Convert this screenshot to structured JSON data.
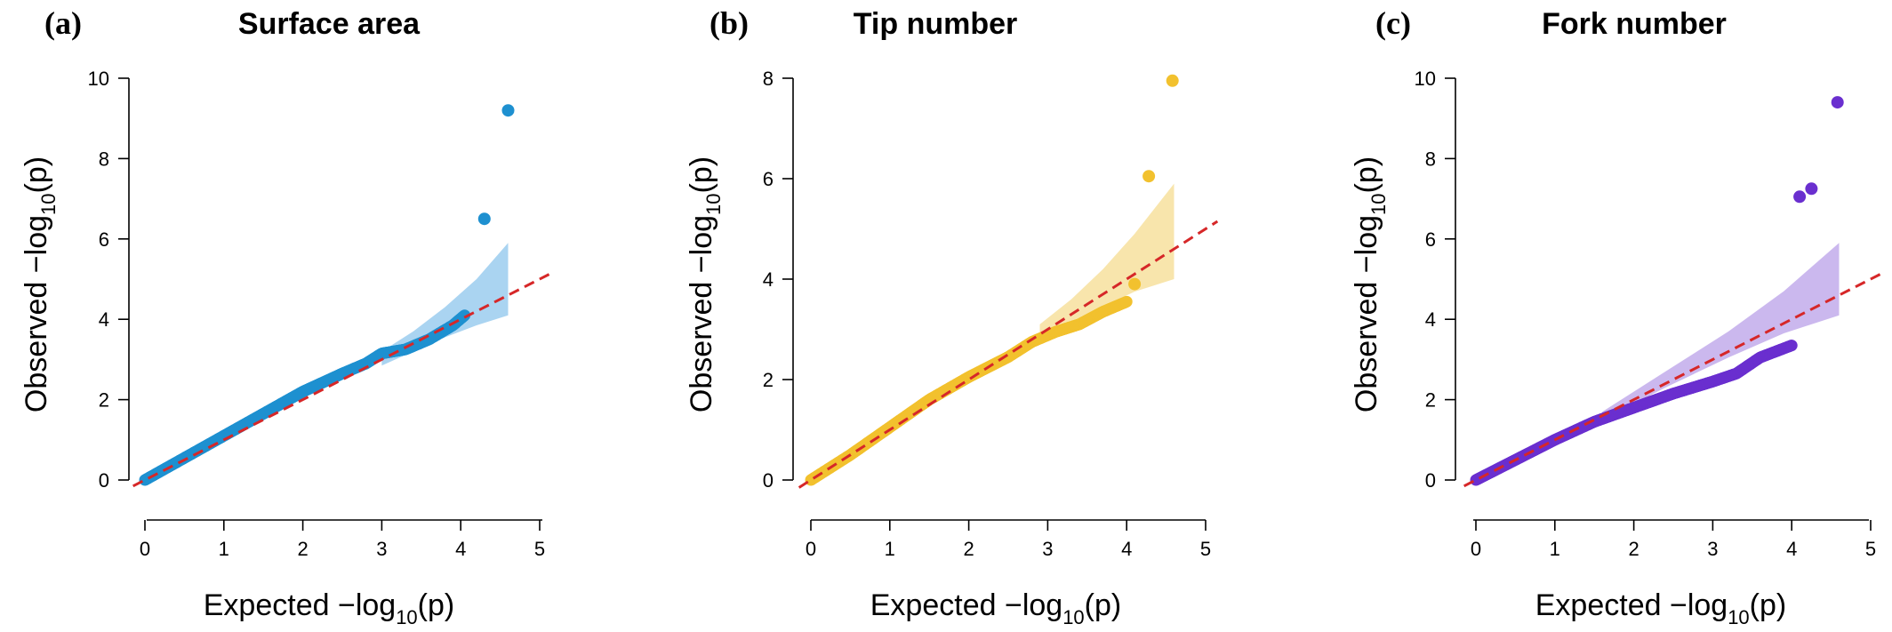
{
  "colors": {
    "reference_line": "#d62728",
    "axes": "#000000"
  },
  "chart_data": [
    {
      "type": "scatter",
      "panel_label": "(a)",
      "title": "Surface area",
      "xlabel": {
        "prefix": "Expected  −log",
        "sub": "10",
        "suffix": "(p)"
      },
      "ylabel": {
        "prefix": "Observed  −log",
        "sub": "10",
        "suffix": "(p)"
      },
      "xlim": [
        0,
        5
      ],
      "ylim": [
        0,
        10
      ],
      "xticks": [
        "0",
        "1",
        "2",
        "3",
        "4",
        "5"
      ],
      "yticks": [
        "0",
        "2",
        "4",
        "6",
        "8",
        "10"
      ],
      "grid": false,
      "color": "#1e90d0",
      "band_color": "#8ec5ec",
      "reference_line": {
        "slope": 1,
        "intercept": 0
      },
      "band": {
        "x": [
          3.0,
          3.4,
          3.8,
          4.2,
          4.6
        ],
        "upper": [
          3.2,
          3.7,
          4.3,
          5.0,
          5.9
        ],
        "lower": [
          2.85,
          3.2,
          3.55,
          3.85,
          4.1
        ]
      },
      "trend": {
        "x": [
          0,
          0.5,
          1.0,
          1.5,
          2.0,
          2.5,
          2.8,
          3.0,
          3.3,
          3.6,
          3.9,
          4.05
        ],
        "y": [
          0,
          0.55,
          1.1,
          1.65,
          2.2,
          2.65,
          2.9,
          3.15,
          3.25,
          3.5,
          3.85,
          4.1
        ]
      },
      "outliers": [
        {
          "x": 4.3,
          "y": 6.5
        },
        {
          "x": 4.6,
          "y": 9.2
        }
      ]
    },
    {
      "type": "scatter",
      "panel_label": "(b)",
      "title": "Tip number",
      "xlabel": {
        "prefix": "Expected  −log",
        "sub": "10",
        "suffix": "(p)"
      },
      "ylabel": {
        "prefix": "Observed  −log",
        "sub": "10",
        "suffix": "(p)"
      },
      "xlim": [
        0,
        5
      ],
      "ylim": [
        0,
        8
      ],
      "xticks": [
        "0",
        "1",
        "2",
        "3",
        "4",
        "5"
      ],
      "yticks": [
        "0",
        "2",
        "4",
        "6",
        "8"
      ],
      "grid": false,
      "color": "#f2c12e",
      "band_color": "#f6dc90",
      "reference_line": {
        "slope": 1,
        "intercept": 0
      },
      "band": {
        "x": [
          2.9,
          3.3,
          3.7,
          4.1,
          4.6
        ],
        "upper": [
          3.1,
          3.6,
          4.2,
          4.9,
          5.9
        ],
        "lower": [
          2.8,
          3.15,
          3.45,
          3.75,
          4.0
        ]
      },
      "trend": {
        "x": [
          0,
          0.5,
          1.0,
          1.5,
          2.0,
          2.5,
          2.8,
          3.1,
          3.4,
          3.7,
          4.0
        ],
        "y": [
          0,
          0.5,
          1.05,
          1.6,
          2.05,
          2.45,
          2.75,
          2.95,
          3.1,
          3.35,
          3.55
        ]
      },
      "outliers": [
        {
          "x": 4.1,
          "y": 3.9
        },
        {
          "x": 4.28,
          "y": 6.05
        },
        {
          "x": 4.58,
          "y": 7.95
        }
      ]
    },
    {
      "type": "scatter",
      "panel_label": "(c)",
      "title": "Fork number",
      "xlabel": {
        "prefix": "Expected  −log",
        "sub": "10",
        "suffix": "(p)"
      },
      "ylabel": {
        "prefix": "Observed  −log",
        "sub": "10",
        "suffix": "(p)"
      },
      "xlim": [
        0,
        5
      ],
      "ylim": [
        0,
        10
      ],
      "xticks": [
        "0",
        "1",
        "2",
        "3",
        "4",
        "5"
      ],
      "yticks": [
        "0",
        "2",
        "4",
        "6",
        "8",
        "10"
      ],
      "grid": false,
      "color": "#6a2fcf",
      "band_color": "#b9a0e8",
      "reference_line": {
        "slope": 1,
        "intercept": 0
      },
      "band": {
        "x": [
          1.6,
          2.4,
          3.2,
          3.9,
          4.6
        ],
        "upper": [
          1.7,
          2.7,
          3.7,
          4.7,
          5.9
        ],
        "lower": [
          1.5,
          2.3,
          3.05,
          3.65,
          4.1
        ]
      },
      "trend": {
        "x": [
          0,
          0.5,
          1.0,
          1.5,
          2.0,
          2.5,
          3.0,
          3.3,
          3.6,
          3.8,
          4.0
        ],
        "y": [
          0,
          0.5,
          1.0,
          1.45,
          1.8,
          2.15,
          2.45,
          2.65,
          3.05,
          3.2,
          3.35
        ]
      },
      "outliers": [
        {
          "x": 4.1,
          "y": 7.05
        },
        {
          "x": 4.25,
          "y": 7.25
        },
        {
          "x": 4.58,
          "y": 9.4
        }
      ]
    }
  ]
}
